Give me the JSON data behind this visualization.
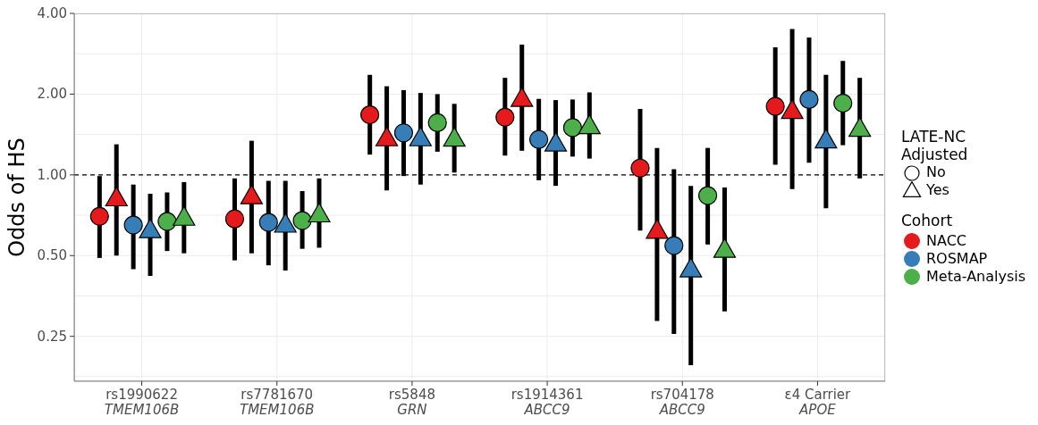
{
  "chart_data": {
    "type": "scatter",
    "ylabel": "Odds of HS",
    "categories": [
      "rs1990622\nTMEM106B",
      "rs7781670\nTMEM106B",
      "rs5848\nGRN",
      "rs1914361\nABCC9",
      "rs704178\nABCC9",
      "ε4 Carrier\nAPOE"
    ],
    "log": "y",
    "ylim": [
      0.17,
      4
    ],
    "yticks": [
      {
        "value": 0.177,
        "label": null
      },
      {
        "value": 0.25,
        "label": "0.25"
      },
      {
        "value": 0.354,
        "label": null
      },
      {
        "value": 0.5,
        "label": "0.50"
      },
      {
        "value": 0.707,
        "label": null
      },
      {
        "value": 1,
        "label": "1.00"
      },
      {
        "value": 1.414,
        "label": null
      },
      {
        "value": 2,
        "label": "2.00"
      },
      {
        "value": 2.828,
        "label": null
      },
      {
        "value": 4,
        "label": "4.00"
      }
    ],
    "grid": true,
    "legend": "right",
    "legend_title": "Cohort",
    "annotations": [
      "LATE-NC\nAdjusted",
      "No",
      "Yes"
    ],
    "ref_lines": [
      {
        "axis": "y",
        "value": 1,
        "line_style": "dashed",
        "color": "#000000"
      }
    ],
    "series": [
      {
        "name": "NACC",
        "color": "#e41a1c",
        "marker": "circle",
        "values": [
          0.7,
          0.685,
          1.675,
          1.64,
          1.06,
          1.8
        ],
        "errors": [
          [
            0.49,
            0.99
          ],
          [
            0.48,
            0.97
          ],
          [
            1.19,
            2.36
          ],
          [
            1.18,
            2.3
          ],
          [
            0.62,
            1.76
          ],
          [
            1.09,
            2.99
          ]
        ]
      },
      {
        "color": "#e41a1c",
        "marker": "triangle",
        "values": [
          0.815,
          0.83,
          1.365,
          1.915,
          0.617,
          1.725
        ],
        "errors": [
          [
            0.5,
            1.3
          ],
          [
            0.51,
            1.34
          ],
          [
            0.875,
            2.14
          ],
          [
            1.23,
            3.06
          ],
          [
            0.285,
            1.26
          ],
          [
            0.886,
            3.5
          ]
        ]
      },
      {
        "name": "ROSMAP",
        "color": "#377eb8",
        "marker": "circle",
        "values": [
          0.65,
          0.665,
          1.435,
          1.355,
          0.545,
          1.91
        ],
        "errors": [
          [
            0.445,
            0.92
          ],
          [
            0.46,
            0.95
          ],
          [
            0.99,
            2.07
          ],
          [
            0.955,
            1.92
          ],
          [
            0.255,
            1.05
          ],
          [
            1.11,
            3.25
          ]
        ]
      },
      {
        "color": "#377eb8",
        "marker": "triangle",
        "values": [
          0.62,
          0.65,
          1.365,
          1.305,
          0.443,
          1.34
        ],
        "errors": [
          [
            0.42,
            0.85
          ],
          [
            0.44,
            0.95
          ],
          [
            0.92,
            2.02
          ],
          [
            0.91,
            1.9
          ],
          [
            0.195,
            0.91
          ],
          [
            0.75,
            2.36
          ]
        ]
      },
      {
        "name": "Meta-Analysis",
        "color": "#4daf4a",
        "marker": "circle",
        "values": [
          0.67,
          0.675,
          1.565,
          1.5,
          0.837,
          1.85
        ],
        "errors": [
          [
            0.52,
            0.86
          ],
          [
            0.53,
            0.87
          ],
          [
            1.22,
            2.0
          ],
          [
            1.17,
            1.91
          ],
          [
            0.55,
            1.26
          ],
          [
            1.29,
            2.66
          ]
        ]
      },
      {
        "color": "#4daf4a",
        "marker": "triangle",
        "values": [
          0.69,
          0.71,
          1.36,
          1.515,
          0.524,
          1.48
        ],
        "errors": [
          [
            0.51,
            0.94
          ],
          [
            0.535,
            0.97
          ],
          [
            1.02,
            1.84
          ],
          [
            1.15,
            2.03
          ],
          [
            0.31,
            0.897
          ],
          [
            0.97,
            2.3
          ]
        ]
      }
    ]
  }
}
